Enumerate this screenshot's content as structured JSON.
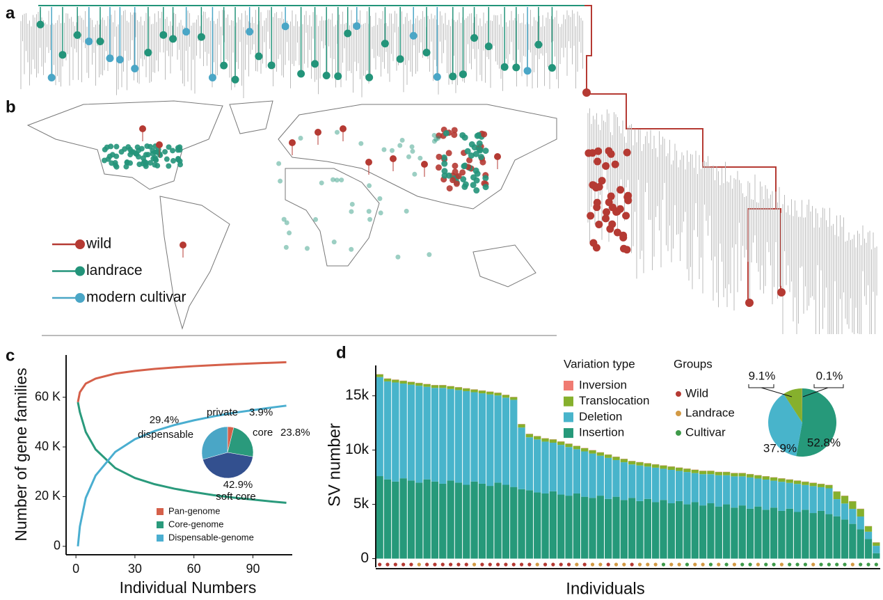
{
  "figure": {
    "panel_a": "a",
    "panel_b": "b",
    "map_legend": [
      {
        "name": "wild",
        "color": "#b53a33"
      },
      {
        "name": "landrace",
        "color": "#23947a"
      },
      {
        "name": "modern cultivar",
        "color": "#4aa6c6"
      }
    ]
  },
  "chart_data": [
    {
      "type": "line",
      "panel": "c",
      "xlabel": "Individual Numbers",
      "ylabel": "Number of gene families",
      "x": [
        1,
        2,
        5,
        10,
        20,
        30,
        40,
        50,
        60,
        70,
        80,
        90,
        100,
        107
      ],
      "xlim": [
        -5,
        110
      ],
      "xticks": [
        0,
        30,
        60,
        90
      ],
      "ylim": [
        -3400,
        77000
      ],
      "yticks": [
        0,
        {
          "value": 20000,
          "label": "20 K"
        },
        {
          "value": 40000,
          "label": "40 K"
        },
        {
          "value": 60000,
          "label": "60 K"
        }
      ],
      "series": [
        {
          "name": "Pan-genome",
          "color": "#d5604a",
          "values": [
            58000,
            62000,
            65500,
            67500,
            69500,
            70600,
            71400,
            72000,
            72500,
            72900,
            73300,
            73600,
            73900,
            74100
          ]
        },
        {
          "name": "Core-genome",
          "color": "#2a9a7c",
          "values": [
            58000,
            54000,
            46000,
            39000,
            31500,
            27500,
            25000,
            23200,
            21800,
            20600,
            19600,
            18800,
            18000,
            17500
          ]
        },
        {
          "name": "Dispensable-genome",
          "color": "#4aaed0",
          "values": [
            0,
            8000,
            19500,
            28500,
            38000,
            43100,
            46400,
            48800,
            50700,
            52300,
            53700,
            54800,
            55900,
            56600
          ]
        }
      ],
      "inset_pie": {
        "categories": [
          "private",
          "core",
          "soft core",
          "dispensable"
        ],
        "values": [
          3.9,
          23.8,
          42.9,
          29.4
        ],
        "value_labels": [
          "3.9%",
          "23.8%",
          "42.9%",
          "29.4%"
        ],
        "colors": [
          "#d5604a",
          "#2a9a7c",
          "#33508f",
          "#4aa6c6"
        ]
      }
    },
    {
      "type": "stacked_bar",
      "panel": "d",
      "xlabel": "Individuals",
      "ylabel": "SV number",
      "legend_title": "Variation type",
      "ylim": [
        -800,
        17800
      ],
      "yticks": [
        0,
        {
          "value": 5000,
          "label": "5k"
        },
        {
          "value": 10000,
          "label": "10k"
        },
        {
          "value": 15000,
          "label": "15k"
        }
      ],
      "series": [
        {
          "name": "Inversion",
          "color": "#f07b72",
          "values": [
            20,
            20,
            20,
            20,
            20,
            20,
            20,
            20,
            20,
            20,
            20,
            20,
            20,
            20,
            20,
            20,
            20,
            20,
            20,
            20,
            20,
            20,
            20,
            20,
            20,
            20,
            20,
            20,
            20,
            20,
            20,
            20,
            20,
            20,
            20,
            20,
            20,
            20,
            20,
            20,
            20,
            20,
            20,
            20,
            20,
            20,
            20,
            20,
            20,
            20,
            20,
            20,
            20,
            20,
            20,
            20,
            20,
            20,
            20,
            20,
            20,
            20,
            20,
            20
          ]
        },
        {
          "name": "Translocation",
          "color": "#86b02d",
          "values": [
            250,
            250,
            250,
            250,
            250,
            250,
            250,
            250,
            250,
            250,
            250,
            250,
            250,
            250,
            250,
            250,
            250,
            250,
            300,
            300,
            300,
            300,
            300,
            300,
            300,
            300,
            300,
            300,
            300,
            300,
            300,
            300,
            300,
            300,
            300,
            300,
            300,
            300,
            300,
            300,
            300,
            300,
            300,
            300,
            300,
            300,
            300,
            300,
            300,
            300,
            300,
            300,
            300,
            300,
            300,
            300,
            300,
            300,
            700,
            700,
            700,
            700,
            500,
            300
          ]
        },
        {
          "name": "Deletion",
          "color": "#48b4cb",
          "values": [
            9130,
            9030,
            9130,
            8730,
            8830,
            8930,
            8530,
            8630,
            8830,
            8430,
            8530,
            8630,
            8230,
            8330,
            8430,
            8030,
            8030,
            8030,
            5680,
            4880,
            4880,
            4780,
            4480,
            4580,
            4480,
            4080,
            4180,
            4080,
            3680,
            3780,
            3380,
            3480,
            3080,
            3280,
            2980,
            3180,
            2880,
            3080,
            2780,
            2980,
            2680,
            2880,
            2680,
            2880,
            2680,
            2880,
            2680,
            2880,
            2580,
            2780,
            2480,
            2680,
            2380,
            2580,
            2280,
            2480,
            2180,
            2380,
            1580,
            1480,
            1380,
            1180,
            680,
            680
          ]
        },
        {
          "name": "Insertion",
          "color": "#26997a",
          "values": [
            7600,
            7300,
            7100,
            7400,
            7200,
            7000,
            7300,
            7100,
            6900,
            7200,
            7000,
            6800,
            7100,
            6900,
            6700,
            7000,
            6800,
            6600,
            6400,
            6300,
            6100,
            6000,
            6200,
            5900,
            5800,
            6000,
            5700,
            5600,
            5800,
            5500,
            5700,
            5400,
            5600,
            5300,
            5500,
            5200,
            5400,
            5100,
            5300,
            5000,
            5200,
            4900,
            5100,
            4800,
            5000,
            4700,
            4900,
            4600,
            4800,
            4500,
            4700,
            4400,
            4600,
            4300,
            4500,
            4200,
            4400,
            4100,
            3900,
            3600,
            3200,
            2700,
            1800,
            500
          ]
        }
      ],
      "groups": {
        "title": "Groups",
        "names": [
          "Wild",
          "Landrace",
          "Cultivar"
        ],
        "colors": [
          "#b53a33",
          "#d39a45",
          "#3f9a4a"
        ],
        "individuals": [
          "Wild",
          "Wild",
          "Wild",
          "Wild",
          "Wild",
          "Landrace",
          "Wild",
          "Wild",
          "Wild",
          "Wild",
          "Wild",
          "Wild",
          "Landrace",
          "Wild",
          "Wild",
          "Wild",
          "Wild",
          "Wild",
          "Wild",
          "Wild",
          "Landrace",
          "Wild",
          "Wild",
          "Wild",
          "Wild",
          "Landrace",
          "Wild",
          "Landrace",
          "Landrace",
          "Wild",
          "Landrace",
          "Landrace",
          "Wild",
          "Landrace",
          "Landrace",
          "Landrace",
          "Cultivar",
          "Landrace",
          "Landrace",
          "Cultivar",
          "Landrace",
          "Landrace",
          "Cultivar",
          "Landrace",
          "Cultivar",
          "Landrace",
          "Cultivar",
          "Cultivar",
          "Landrace",
          "Cultivar",
          "Cultivar",
          "Landrace",
          "Cultivar",
          "Cultivar",
          "Cultivar",
          "Landrace",
          "Cultivar",
          "Cultivar",
          "Cultivar",
          "Cultivar",
          "Landrace",
          "Cultivar",
          "Cultivar",
          "Cultivar"
        ]
      },
      "inset_pie": {
        "values": [
          0.1,
          9.1,
          37.9,
          52.8
        ],
        "value_labels": [
          "0.1%",
          "9.1%",
          "37.9%",
          "52.8%"
        ]
      }
    }
  ]
}
